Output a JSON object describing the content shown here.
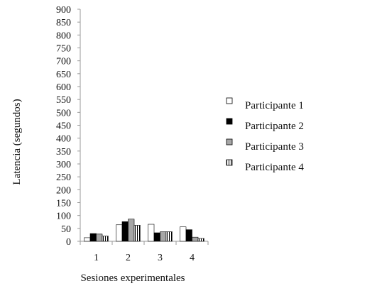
{
  "chart_data": {
    "type": "bar",
    "xlabel": "Sesiones experimentales",
    "ylabel": "Latencia (segundos)",
    "categories": [
      "1",
      "2",
      "3",
      "4"
    ],
    "ylim": [
      0,
      900
    ],
    "yticks": [
      0,
      50,
      100,
      150,
      200,
      250,
      300,
      350,
      400,
      450,
      500,
      550,
      600,
      650,
      700,
      750,
      800,
      850,
      900
    ],
    "grid": false,
    "legend_position": "right",
    "series": [
      {
        "name": "Participante 1",
        "values": [
          14,
          64,
          66,
          56
        ],
        "style": "white"
      },
      {
        "name": "Participante 2",
        "values": [
          30,
          76,
          33,
          45
        ],
        "style": "black"
      },
      {
        "name": "Participante 3",
        "values": [
          28,
          86,
          37,
          16
        ],
        "style": "gray"
      },
      {
        "name": "Participante 4",
        "values": [
          20,
          62,
          37,
          11
        ],
        "style": "striped"
      }
    ],
    "colors": {
      "white": "#ffffff",
      "black": "#000000",
      "gray": "#a6a6a6",
      "outline": "#000000",
      "axis": "#999999"
    }
  }
}
